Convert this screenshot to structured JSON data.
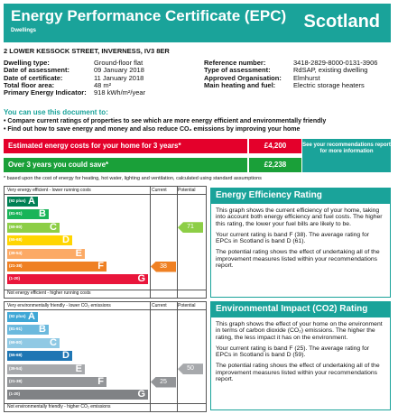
{
  "header": {
    "title": "Energy Performance Certificate (EPC)",
    "subtitle": "Dwellings",
    "country": "Scotland"
  },
  "address": "2 LOWER KESSOCK STREET, INVERNESS, IV3 8ER",
  "details_left": [
    {
      "label": "Dwelling type:",
      "value": "Ground-floor flat"
    },
    {
      "label": "Date of assessment:",
      "value": "09 January 2018"
    },
    {
      "label": "Date of certificate:",
      "value": "11 January 2018"
    },
    {
      "label": "Total floor area:",
      "value": "48 m²"
    },
    {
      "label": "Primary Energy Indicator:",
      "value": "918 kWh/m²/year"
    }
  ],
  "details_right": [
    {
      "label": "Reference number:",
      "value": "3418-2829-8000-0131-3906"
    },
    {
      "label": "Type of assessment:",
      "value": "RdSAP, existing dwelling"
    },
    {
      "label": "Approved Organisation:",
      "value": "Elmhurst"
    },
    {
      "label": "Main heating and fuel:",
      "value": "Electric storage heaters"
    }
  ],
  "use_heading": "You can use this document to:",
  "bullets": [
    "Compare current ratings of properties to see which are more energy efficient and environmentally friendly",
    "Find out how to save energy and money and also reduce CO₂ emissions by improving your home"
  ],
  "costs": {
    "estimated_label": "Estimated energy costs for your home for 3 years*",
    "estimated_value": "£4,200",
    "save_label": "Over 3 years you could save*",
    "save_value": "£2,238",
    "see_box": "See your recommendations report for more information",
    "footnote": "* based upon the cost of energy for heating, hot water, lighting and ventilation, calculated using standard assumptions"
  },
  "efficiency_chart": {
    "top_label": "Very energy efficient - lower running costs",
    "bottom_label": "Not energy efficient - higher running costs",
    "col_current": "Current",
    "col_potential": "Potential",
    "bands": [
      {
        "range": "(92 plus)",
        "letter": "A",
        "color": "#008054"
      },
      {
        "range": "(81-91)",
        "letter": "B",
        "color": "#19b459"
      },
      {
        "range": "(69-80)",
        "letter": "C",
        "color": "#8dce46"
      },
      {
        "range": "(55-68)",
        "letter": "D",
        "color": "#ffd500"
      },
      {
        "range": "(39-54)",
        "letter": "E",
        "color": "#fcaa65"
      },
      {
        "range": "(21-38)",
        "letter": "F",
        "color": "#ef8023"
      },
      {
        "range": "(1-20)",
        "letter": "G",
        "color": "#e9153b"
      }
    ],
    "current": 38,
    "current_color": "#ef8023",
    "potential": 71,
    "potential_color": "#8dce46"
  },
  "environmental_chart": {
    "top_label": "Very environmentally friendly - lower CO₂ emissions",
    "bottom_label": "Not environmentally friendly - higher CO₂ emissions",
    "col_current": "Current",
    "col_potential": "Potential",
    "bands": [
      {
        "range": "(92 plus)",
        "letter": "A",
        "color": "#3fa7d6"
      },
      {
        "range": "(81-91)",
        "letter": "B",
        "color": "#6bb9dd"
      },
      {
        "range": "(69-80)",
        "letter": "C",
        "color": "#8fc9e4"
      },
      {
        "range": "(55-68)",
        "letter": "D",
        "color": "#1f76b4"
      },
      {
        "range": "(39-54)",
        "letter": "E",
        "color": "#a7a9ac"
      },
      {
        "range": "(21-38)",
        "letter": "F",
        "color": "#939598"
      },
      {
        "range": "(1-20)",
        "letter": "G",
        "color": "#808285"
      }
    ],
    "current": 25,
    "current_color": "#939598",
    "potential": 50,
    "potential_color": "#a7a9ac"
  },
  "eer_panel": {
    "title": "Energy Efficiency Rating",
    "p1": "This graph shows the current efficiency of your home, taking into account both energy efficiency and fuel costs. The higher this rating, the lower your fuel bills are likely to be.",
    "p2": "Your current rating is band F (38). The average rating for EPCs in Scotland is band D (61).",
    "p3": "The potential rating shows the effect of undertaking all of the improvement measures listed within your recommendations report."
  },
  "eir_panel": {
    "title": "Environmental Impact (CO2) Rating",
    "p1": "This graph shows the effect of your home on the environment in terms of carbon dioxide (CO₂) emissions. The higher the rating, the less impact it has on the environment.",
    "p2": "Your current rating is band F (25). The average rating for EPCs in Scotland is band D (59).",
    "p3": "The potential rating shows the effect of undertaking all of the improvement measures listed within your recommendations report."
  }
}
